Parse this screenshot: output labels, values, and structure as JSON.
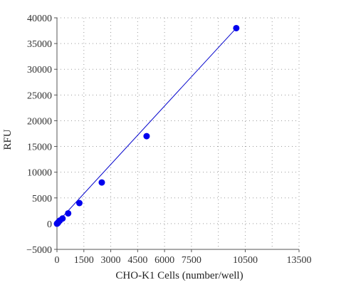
{
  "chart_data": {
    "type": "scatter",
    "xlabel": "CHO-K1 Cells (number/well)",
    "ylabel": "RFU",
    "xlim": [
      0,
      13500
    ],
    "ylim": [
      -5000,
      40000
    ],
    "x_ticks": [
      0,
      1500,
      3000,
      4500,
      6000,
      7500,
      10500,
      13500
    ],
    "x_tick_labels": [
      "0",
      "1500",
      "3000",
      "4500",
      "6000",
      "7500",
      "10500",
      "13500"
    ],
    "x_grid": [
      0,
      1500,
      3000,
      4500,
      6000,
      7500,
      9000,
      10500,
      12000,
      13500
    ],
    "y_ticks": [
      -5000,
      0,
      5000,
      10000,
      15000,
      20000,
      25000,
      30000,
      35000,
      40000
    ],
    "y_tick_labels": [
      "−5000",
      "0",
      "5000",
      "10000",
      "15000",
      "20000",
      "25000",
      "30000",
      "35000",
      "40000"
    ],
    "grid": true,
    "series": [
      {
        "color": "#0000ee",
        "points": [
          {
            "x": 0,
            "y": 0
          },
          {
            "x": 40,
            "y": 100
          },
          {
            "x": 80,
            "y": 300
          },
          {
            "x": 160,
            "y": 600
          },
          {
            "x": 310,
            "y": 1000
          },
          {
            "x": 625,
            "y": 2000
          },
          {
            "x": 1250,
            "y": 4000
          },
          {
            "x": 2500,
            "y": 8000
          },
          {
            "x": 5000,
            "y": 17000
          },
          {
            "x": 10000,
            "y": 38000
          }
        ]
      }
    ],
    "trendline": {
      "color": "#0000cc",
      "x": [
        0,
        10000
      ],
      "y": [
        150,
        38000
      ]
    }
  }
}
